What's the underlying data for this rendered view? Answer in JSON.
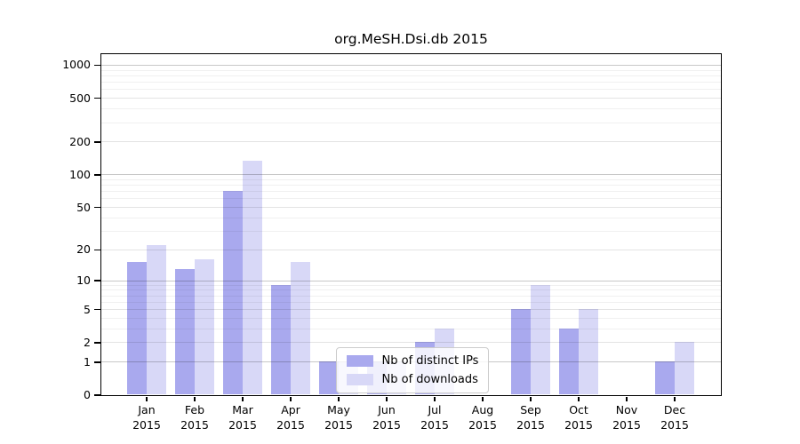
{
  "title": "org.MeSH.Dsi.db 2015",
  "chart_data": {
    "type": "bar",
    "title": "org.MeSH.Dsi.db 2015",
    "categories": [
      "Jan 2015",
      "Feb 2015",
      "Mar 2015",
      "Apr 2015",
      "May 2015",
      "Jun 2015",
      "Jul 2015",
      "Aug 2015",
      "Sep 2015",
      "Oct 2015",
      "Nov 2015",
      "Dec 2015"
    ],
    "series": [
      {
        "name": "Nb of distinct IPs",
        "color": "#a9a9ee",
        "values": [
          15,
          13,
          70,
          9,
          1,
          1,
          2,
          0,
          5,
          3,
          0,
          1
        ]
      },
      {
        "name": "Nb of downloads",
        "color": "#d8d8f7",
        "values": [
          22,
          16,
          134,
          15,
          1,
          1,
          3,
          0,
          9,
          5,
          0,
          2
        ]
      }
    ],
    "yticks": [
      0,
      1,
      2,
      5,
      10,
      20,
      50,
      100,
      200,
      500,
      1000
    ],
    "yscale": "log1p",
    "ylim": [
      0,
      1260
    ],
    "xlabel": "",
    "ylabel": "",
    "grid": true,
    "legend_position": "bottom-center"
  }
}
